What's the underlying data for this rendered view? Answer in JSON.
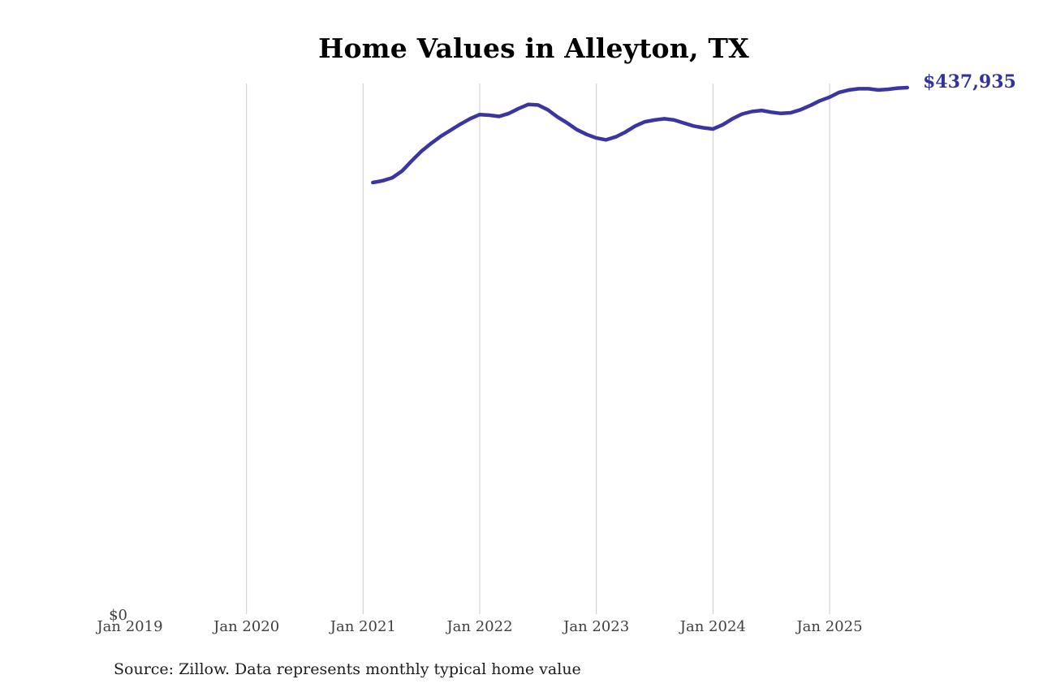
{
  "chart_data": {
    "type": "line",
    "title": "Home Values in Alleyton, TX",
    "latest_value_label": "$437,935",
    "latest_value": 437935,
    "source_note": "Source: Zillow. Data represents monthly typical home value",
    "y_axis": {
      "min": 0,
      "min_label": "$0",
      "max": 445000,
      "gridlines": false
    },
    "x_axis": {
      "ticks": [
        {
          "label": "Jan 2019",
          "month_index": 0,
          "gridline": false
        },
        {
          "label": "Jan 2020",
          "month_index": 12,
          "gridline": true
        },
        {
          "label": "Jan 2021",
          "month_index": 24,
          "gridline": true
        },
        {
          "label": "Jan 2022",
          "month_index": 36,
          "gridline": true
        },
        {
          "label": "Jan 2023",
          "month_index": 48,
          "gridline": true
        },
        {
          "label": "Jan 2024",
          "month_index": 60,
          "gridline": true
        },
        {
          "label": "Jan 2025",
          "month_index": 72,
          "gridline": true
        }
      ]
    },
    "series": [
      {
        "name": "Typical home value (USD)",
        "interval": "monthly",
        "start_month": "2021-02",
        "end_month": "2025-09",
        "start_month_index": 25,
        "values": [
          359000,
          360500,
          363000,
          368500,
          377000,
          385000,
          391500,
          397500,
          402500,
          407500,
          412000,
          415500,
          415000,
          414000,
          416500,
          420500,
          424000,
          423500,
          419500,
          413500,
          408500,
          403000,
          399000,
          396000,
          394500,
          397000,
          401000,
          406000,
          409500,
          411000,
          412000,
          411000,
          408500,
          406000,
          404500,
          403500,
          407000,
          412000,
          416000,
          418000,
          419000,
          417500,
          416500,
          417000,
          419500,
          423000,
          427000,
          430000,
          434000,
          436000,
          437000,
          437000,
          436000,
          436500,
          437500,
          437935
        ]
      }
    ],
    "colors": {
      "line": "#3b35a2",
      "value_label": "#31329e",
      "gridline": "#cbcbcb",
      "tick_label": "#3f3f3f",
      "title": "#000000",
      "source": "#1c1c1c"
    }
  }
}
